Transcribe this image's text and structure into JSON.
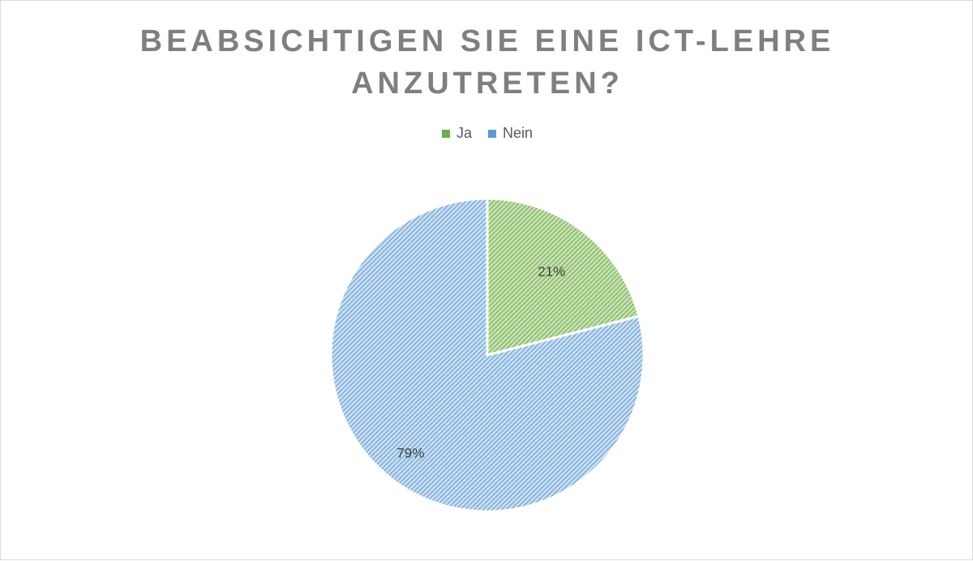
{
  "chart_data": {
    "type": "pie",
    "title": "BEABSICHTIGEN SIE EINE ICT-LEHRE ANZUTRETEN?",
    "title_lines": [
      "BEABSICHTIGEN SIE EINE ICT-LEHRE",
      "ANZUTRETEN?"
    ],
    "categories": [
      "Ja",
      "Nein"
    ],
    "values": [
      21,
      79
    ],
    "data_labels": [
      "21%",
      "79%"
    ],
    "colors": [
      "#70ad47",
      "#5b9bd5"
    ],
    "legend": {
      "position": "top",
      "entries": [
        "Ja",
        "Nein"
      ]
    }
  }
}
